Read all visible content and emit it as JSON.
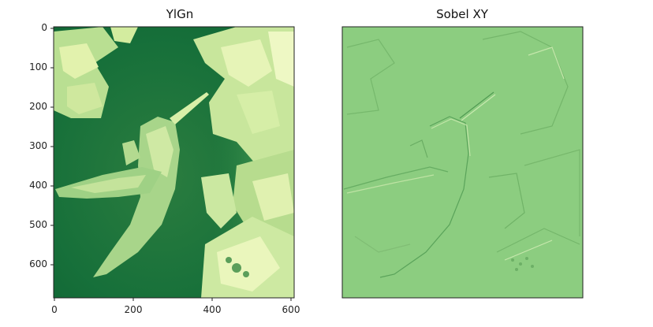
{
  "figure": {
    "left_panel": {
      "title": "YlGn",
      "image_desc": "hummingbird-photo-ylgn-colormap",
      "x_ticks": [
        "0",
        "200",
        "400",
        "600"
      ],
      "y_ticks": [
        "0",
        "100",
        "200",
        "300",
        "400",
        "500",
        "600"
      ]
    },
    "right_panel": {
      "title": "Sobel XY",
      "image_desc": "hummingbird-sobel-edge-map"
    }
  },
  "colors": {
    "ylgn_dark": "#0f6b36",
    "ylgn_mid": "#4a9a5a",
    "ylgn_light": "#d8efa8",
    "sobel_bg": "#8ccd80",
    "sobel_edge_dark": "#4f9a52",
    "sobel_edge_light": "#c9eab0"
  }
}
